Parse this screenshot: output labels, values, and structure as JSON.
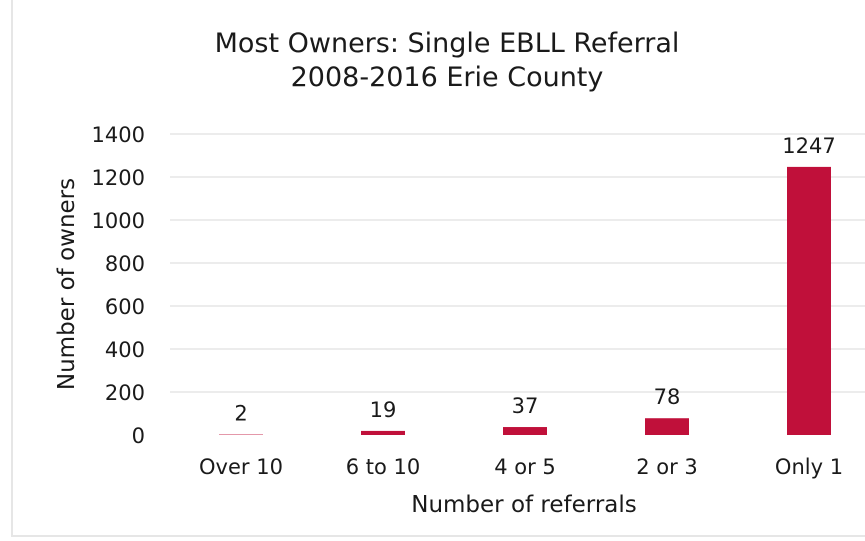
{
  "chart_data": {
    "type": "bar",
    "title": [
      "Most Owners: Single EBLL Referral",
      "2008-2016 Erie County"
    ],
    "xlabel": "Number of referrals",
    "ylabel": "Number of owners",
    "categories": [
      "Over 10",
      "6 to 10",
      "4 or 5",
      "2 or 3",
      "Only 1"
    ],
    "values": [
      2,
      19,
      37,
      78,
      1247
    ],
    "data_labels": [
      "2",
      "19",
      "37",
      "78",
      "1247"
    ],
    "ylim": [
      0,
      1400
    ],
    "yticks": [
      0,
      200,
      400,
      600,
      800,
      1000,
      1200,
      1400
    ],
    "ytick_labels": [
      "0",
      "200",
      "400",
      "600",
      "800",
      "1000",
      "1200",
      "1400"
    ],
    "grid": true,
    "legend": "none",
    "bar_color": "#c0103a"
  }
}
